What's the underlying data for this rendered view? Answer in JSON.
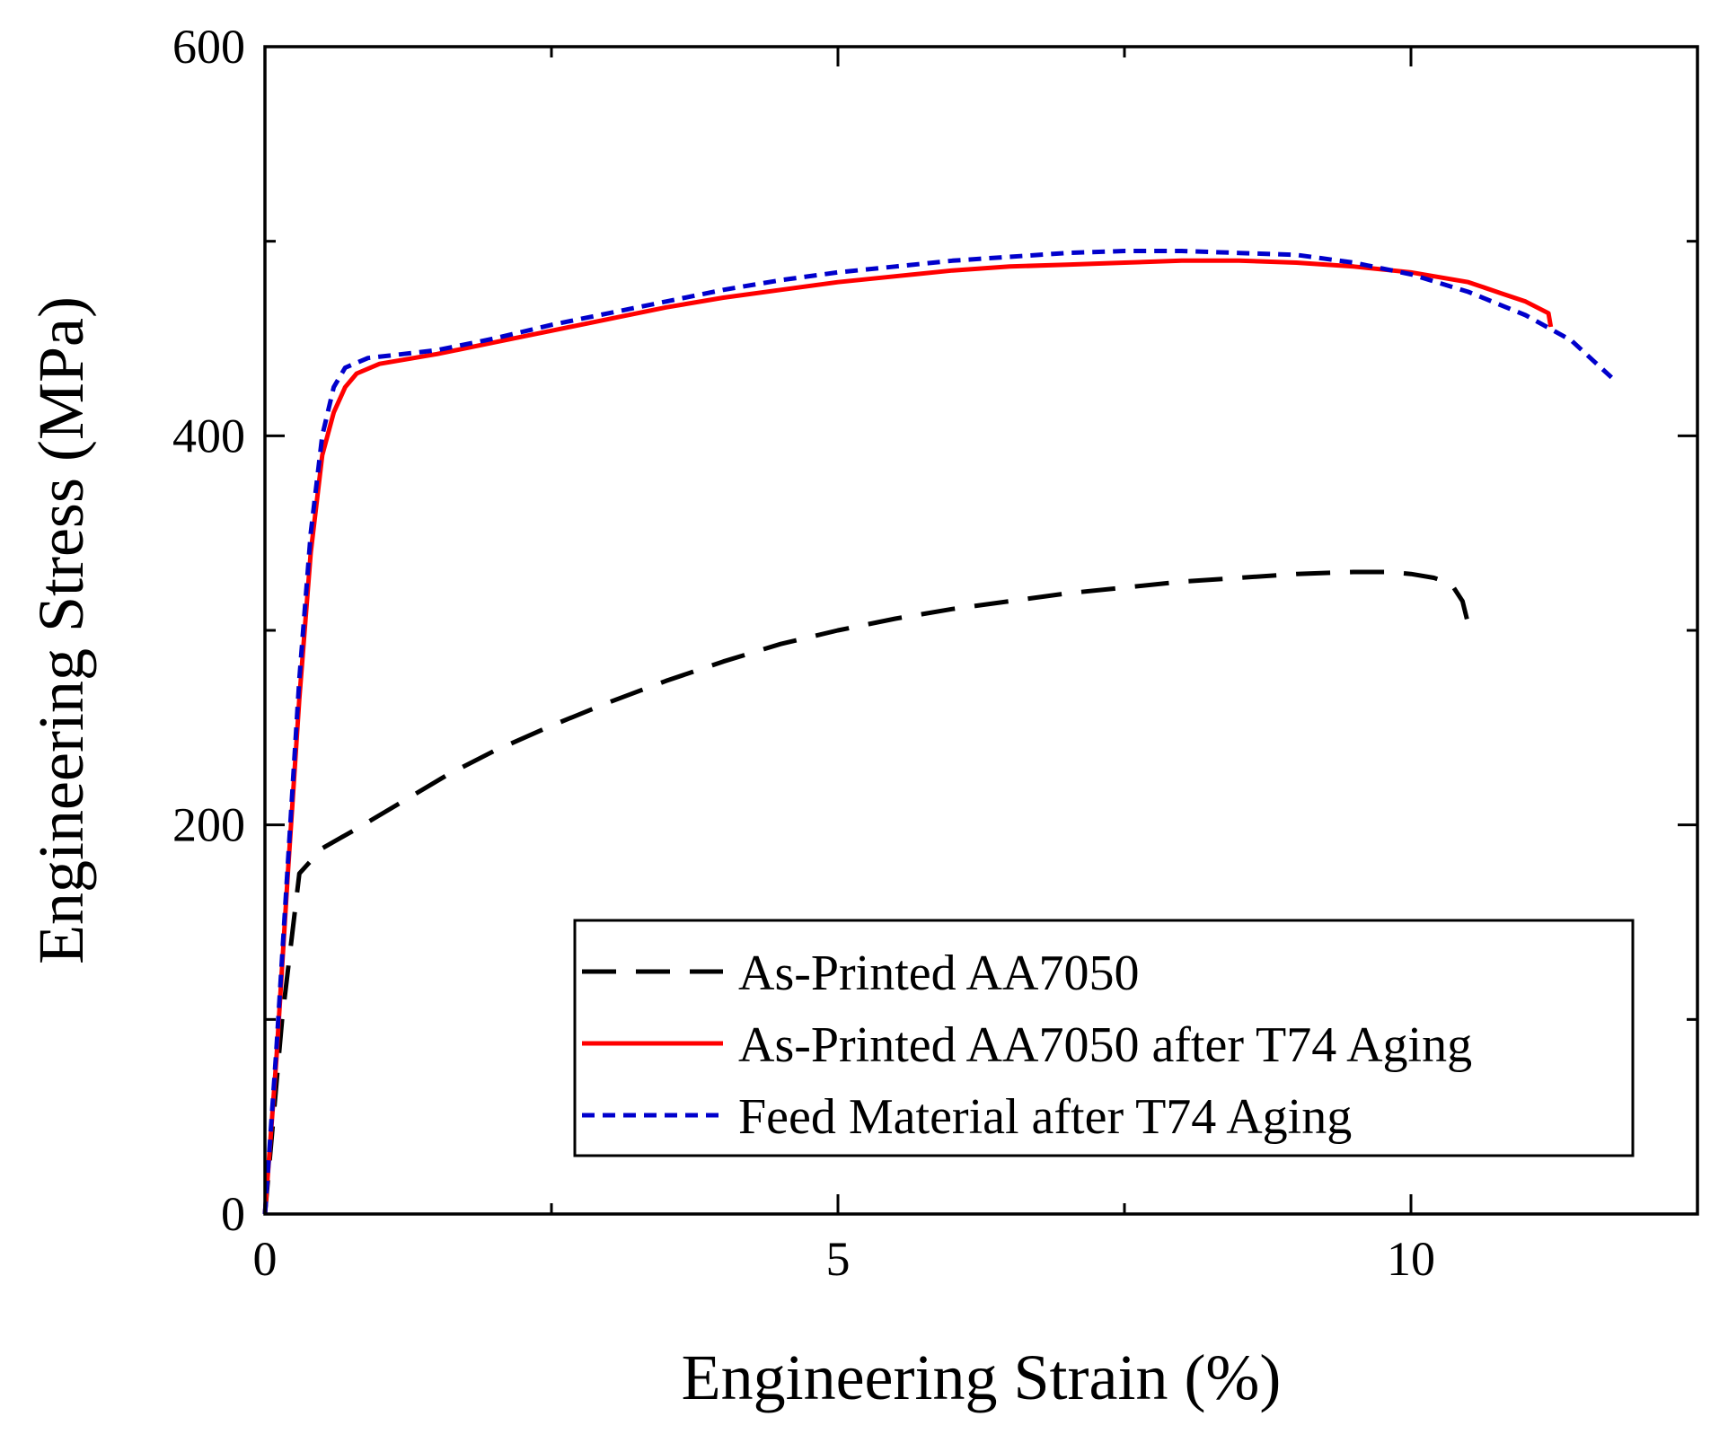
{
  "chart_data": {
    "type": "line",
    "title": "",
    "xlabel": "Engineering Strain (%)",
    "ylabel": "Engineering Stress (MPa)",
    "xlim": [
      0,
      12.5
    ],
    "ylim": [
      0,
      600
    ],
    "x_ticks": [
      0,
      5,
      10
    ],
    "y_ticks": [
      0,
      200,
      400,
      600
    ],
    "x_tick_labels": [
      "0",
      "5",
      "10"
    ],
    "y_tick_labels": [
      "0",
      "200",
      "400",
      "600"
    ],
    "grid": false,
    "legend_position": "bottom-right",
    "series": [
      {
        "name": "As-Printed AA7050",
        "color": "#000000",
        "style": "long-dash",
        "x": [
          0,
          0.15,
          0.3,
          0.5,
          0.8,
          1.2,
          1.6,
          2.0,
          2.5,
          3.0,
          3.5,
          4.0,
          4.5,
          5.0,
          5.5,
          6.0,
          6.5,
          7.0,
          7.5,
          8.0,
          8.5,
          9.0,
          9.5,
          9.8,
          10.0,
          10.2,
          10.35,
          10.45,
          10.5
        ],
        "y": [
          0,
          100,
          175,
          188,
          198,
          212,
          226,
          238,
          251,
          263,
          274,
          284,
          293,
          300,
          306,
          311,
          315,
          319,
          322,
          325,
          327,
          329,
          330,
          330,
          329,
          327,
          324,
          315,
          303
        ]
      },
      {
        "name": "As-Printed AA7050 after T74 Aging",
        "color": "#ff0000",
        "style": "solid",
        "x": [
          0,
          0.1,
          0.2,
          0.3,
          0.4,
          0.5,
          0.6,
          0.7,
          0.8,
          1.0,
          1.5,
          2.0,
          2.5,
          3.0,
          3.5,
          4.0,
          4.5,
          5.0,
          5.5,
          6.0,
          6.5,
          7.0,
          7.5,
          8.0,
          8.5,
          9.0,
          9.5,
          10.0,
          10.5,
          10.8,
          11.0,
          11.2,
          11.22
        ],
        "y": [
          0,
          80,
          175,
          265,
          340,
          390,
          412,
          425,
          432,
          437,
          442,
          448,
          454,
          460,
          466,
          471,
          475,
          479,
          482,
          485,
          487,
          488,
          489,
          490,
          490,
          489,
          487,
          484,
          479,
          473,
          469,
          463,
          456
        ]
      },
      {
        "name": "Feed Material after T74 Aging",
        "color": "#0000cc",
        "style": "short-dash",
        "x": [
          0,
          0.1,
          0.2,
          0.3,
          0.4,
          0.5,
          0.6,
          0.7,
          0.9,
          1.5,
          2.0,
          2.5,
          3.0,
          3.5,
          4.0,
          4.5,
          5.0,
          5.5,
          6.0,
          6.5,
          7.0,
          7.5,
          8.0,
          8.5,
          9.0,
          9.5,
          10.0,
          10.5,
          11.0,
          11.4,
          11.75
        ],
        "y": [
          0,
          85,
          180,
          275,
          350,
          400,
          425,
          435,
          440,
          444,
          450,
          457,
          463,
          469,
          475,
          480,
          484,
          487,
          490,
          492,
          494,
          495,
          495,
          494,
          493,
          489,
          483,
          474,
          462,
          449,
          430
        ]
      }
    ]
  }
}
